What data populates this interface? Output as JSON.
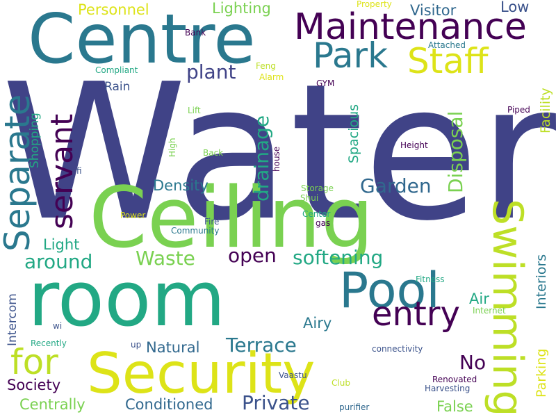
{
  "words": [
    {
      "text": "Water",
      "color": "#404387"
    },
    {
      "text": "Ceiling",
      "color": "#7ad151"
    },
    {
      "text": "room",
      "color": "#22a884"
    },
    {
      "text": "Security",
      "color": "#dde318"
    },
    {
      "text": "Centre",
      "color": "#2a788e"
    },
    {
      "text": "Swimming",
      "color": "#bddf26"
    },
    {
      "text": "Pool",
      "color": "#2a788e"
    },
    {
      "text": "Maintenance",
      "color": "#440154"
    },
    {
      "text": "entry",
      "color": "#440154"
    },
    {
      "text": "Separate",
      "color": "#2a788e"
    },
    {
      "text": "servant",
      "color": "#440154"
    },
    {
      "text": "Park",
      "color": "#2a788e"
    },
    {
      "text": "Staff",
      "color": "#dde318"
    },
    {
      "text": "for",
      "color": "#bddf26"
    },
    {
      "text": "Disposal",
      "color": "#7ad151"
    },
    {
      "text": "drainage",
      "color": "#22a884"
    },
    {
      "text": "plant",
      "color": "#404387"
    },
    {
      "text": "Garden",
      "color": "#31688e"
    },
    {
      "text": "Private",
      "color": "#3b528b"
    },
    {
      "text": "Terrace",
      "color": "#2a788e"
    },
    {
      "text": "softening",
      "color": "#22a884"
    },
    {
      "text": "around",
      "color": "#22a884"
    },
    {
      "text": "open",
      "color": "#440154"
    },
    {
      "text": "Waste",
      "color": "#7ad151"
    },
    {
      "text": "No",
      "color": "#440154"
    },
    {
      "text": "Facility",
      "color": "#bddf26"
    },
    {
      "text": "Parking",
      "color": "#dde318"
    },
    {
      "text": "Spacious",
      "color": "#22a884"
    },
    {
      "text": "Interiors",
      "color": "#2a788e"
    },
    {
      "text": "Lighting",
      "color": "#7ad151"
    },
    {
      "text": "Personnel",
      "color": "#dde318"
    },
    {
      "text": "Visitor",
      "color": "#31688e"
    },
    {
      "text": "Low",
      "color": "#3b528b"
    },
    {
      "text": "Density",
      "color": "#2a788e"
    },
    {
      "text": "Light",
      "color": "#22a884"
    },
    {
      "text": "Airy",
      "color": "#2a788e"
    },
    {
      "text": "Natural",
      "color": "#31688e"
    },
    {
      "text": "Society",
      "color": "#440154"
    },
    {
      "text": "Centrally",
      "color": "#7ad151"
    },
    {
      "text": "Conditioned",
      "color": "#31688e"
    },
    {
      "text": "False",
      "color": "#7ad151"
    },
    {
      "text": "Air",
      "color": "#22a884"
    },
    {
      "text": "Rain",
      "color": "#3b528b"
    },
    {
      "text": "Shopping",
      "color": "#22a884"
    },
    {
      "text": "Intercom",
      "color": "#3b528b"
    },
    {
      "text": "Property",
      "color": "#dde318"
    },
    {
      "text": "Attached",
      "color": "#2a788e"
    },
    {
      "text": "Bank",
      "color": "#440154"
    },
    {
      "text": "Compliant",
      "color": "#22a884"
    },
    {
      "text": "Feng",
      "color": "#bddf26"
    },
    {
      "text": "Alarm",
      "color": "#dde318"
    },
    {
      "text": "GYM",
      "color": "#440154"
    },
    {
      "text": "Piped",
      "color": "#440154"
    },
    {
      "text": "Lift",
      "color": "#7ad151"
    },
    {
      "text": "High",
      "color": "#7ad151"
    },
    {
      "text": "Back",
      "color": "#7ad151"
    },
    {
      "text": "house",
      "color": "#440154"
    },
    {
      "text": "Height",
      "color": "#440154"
    },
    {
      "text": "fi",
      "color": "#3b528b"
    },
    {
      "text": "Storage",
      "color": "#7ad151"
    },
    {
      "text": "Shui",
      "color": "#7ad151"
    },
    {
      "text": "Power",
      "color": "#dde318"
    },
    {
      "text": "Fire",
      "color": "#3b528b"
    },
    {
      "text": "Community",
      "color": "#2a788e"
    },
    {
      "text": "Center",
      "color": "#22a884"
    },
    {
      "text": "gas",
      "color": "#440154"
    },
    {
      "text": "Fitness",
      "color": "#22a884"
    },
    {
      "text": "Internet",
      "color": "#7ad151"
    },
    {
      "text": "wi",
      "color": "#3b528b"
    },
    {
      "text": "up",
      "color": "#3b528b"
    },
    {
      "text": "Recently",
      "color": "#22a884"
    },
    {
      "text": "connectivity",
      "color": "#3b528b"
    },
    {
      "text": "Vaastu",
      "color": "#3b528b"
    },
    {
      "text": "Club",
      "color": "#bddf26"
    },
    {
      "text": "Renovated",
      "color": "#440154"
    },
    {
      "text": "Harvesting",
      "color": "#3b528b"
    },
    {
      "text": "purifier",
      "color": "#31688e"
    }
  ]
}
